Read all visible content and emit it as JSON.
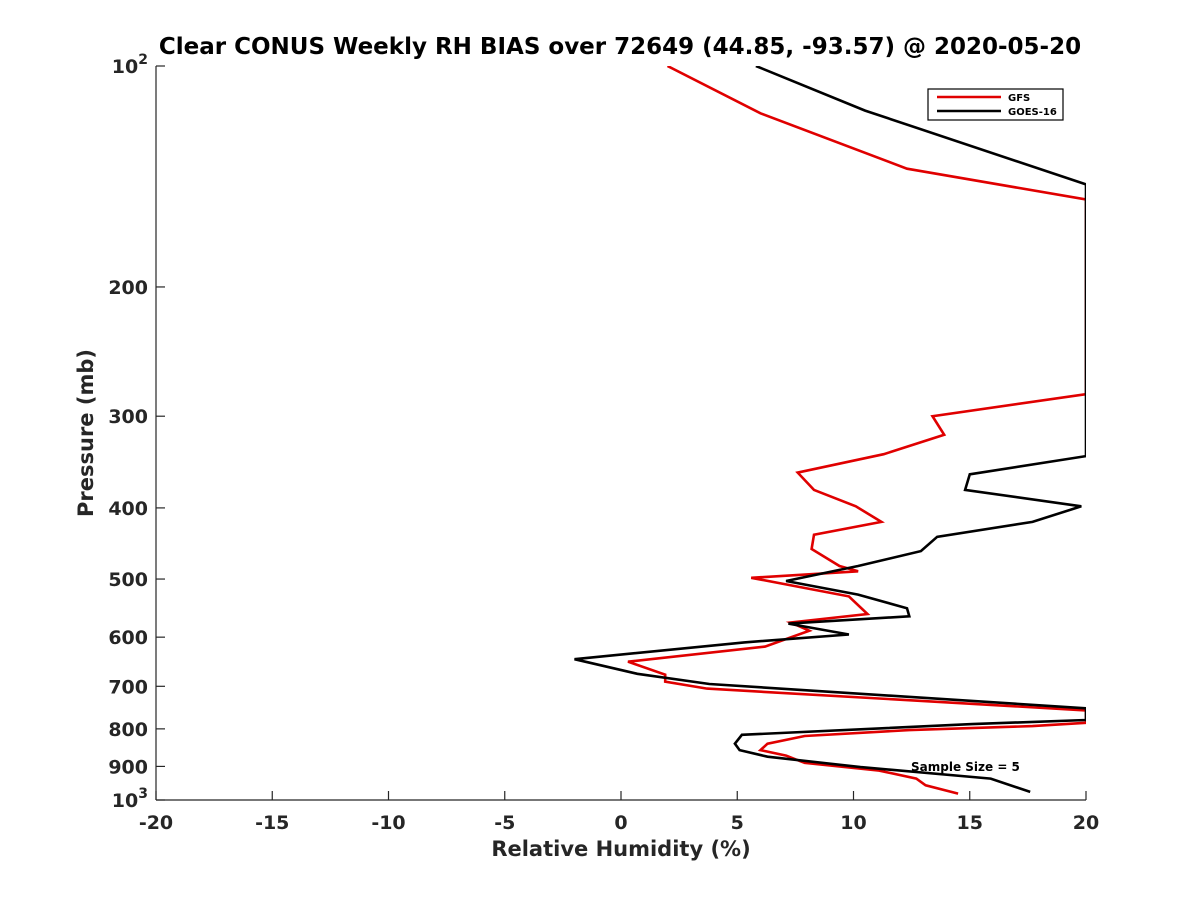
{
  "chart_data": {
    "type": "line",
    "title": "Clear CONUS Weekly RH BIAS over 72649 (44.85, -93.57) @ 2020-05-20",
    "xlabel": "Relative Humidity (%)",
    "ylabel": "Pressure (mb)",
    "xlim": [
      -20,
      20
    ],
    "ylim": [
      100,
      1000
    ],
    "yscale": "log",
    "y_reversed": true,
    "grid": false,
    "legend_position": "top-right",
    "x_ticks": [
      -20,
      -15,
      -10,
      -5,
      0,
      5,
      10,
      15,
      20
    ],
    "x_tick_labels": [
      "-20",
      "-15",
      "-10",
      "-5",
      "0",
      "5",
      "10",
      "15",
      "20"
    ],
    "y_ticks": [
      100,
      200,
      300,
      400,
      500,
      600,
      700,
      800,
      900,
      1000
    ],
    "y_tick_labels": [
      "10^2",
      "200",
      "300",
      "400",
      "500",
      "600",
      "700",
      "800",
      "900",
      "10^3"
    ],
    "annotation": "Sample Size = 5",
    "series": [
      {
        "name": "GFS",
        "color": "#e00000",
        "x": [
          2.0,
          6.0,
          12.3,
          20.0,
          20.0,
          13.4,
          13.9,
          11.3,
          7.6,
          8.3,
          10.1,
          11.2,
          8.3,
          8.2,
          9.4,
          10.2,
          5.6,
          9.8,
          10.6,
          7.3,
          8.1,
          6.2,
          0.3,
          1.9,
          1.9,
          3.7,
          20.0,
          20.0,
          17.7,
          12.4,
          7.9,
          6.3,
          6.0,
          7.1,
          7.9,
          11.1,
          12.7,
          13.1,
          14.5
        ],
        "y": [
          100,
          116,
          138,
          152,
          280,
          300,
          318,
          338,
          358,
          378,
          398,
          418,
          435,
          455,
          480,
          488,
          498,
          528,
          558,
          573,
          588,
          618,
          648,
          675,
          690,
          705,
          755,
          785,
          793,
          803,
          818,
          838,
          855,
          870,
          890,
          912,
          935,
          955,
          980
        ]
      },
      {
        "name": "GOES-16",
        "color": "#000000",
        "x": [
          5.8,
          10.5,
          20.0,
          20.0,
          15.0,
          14.8,
          19.8,
          17.7,
          13.6,
          12.9,
          10.2,
          7.1,
          10.2,
          12.3,
          12.4,
          7.2,
          9.8,
          5.3,
          -2.0,
          0.7,
          3.8,
          20.0,
          20.0,
          15.1,
          5.2,
          4.9,
          5.1,
          6.3,
          10.3,
          15.9,
          17.6
        ],
        "y": [
          100,
          115,
          145,
          340,
          360,
          378,
          398,
          418,
          438,
          458,
          480,
          503,
          525,
          548,
          562,
          575,
          595,
          610,
          643,
          673,
          695,
          750,
          778,
          788,
          815,
          838,
          855,
          873,
          902,
          935,
          975
        ]
      }
    ]
  }
}
